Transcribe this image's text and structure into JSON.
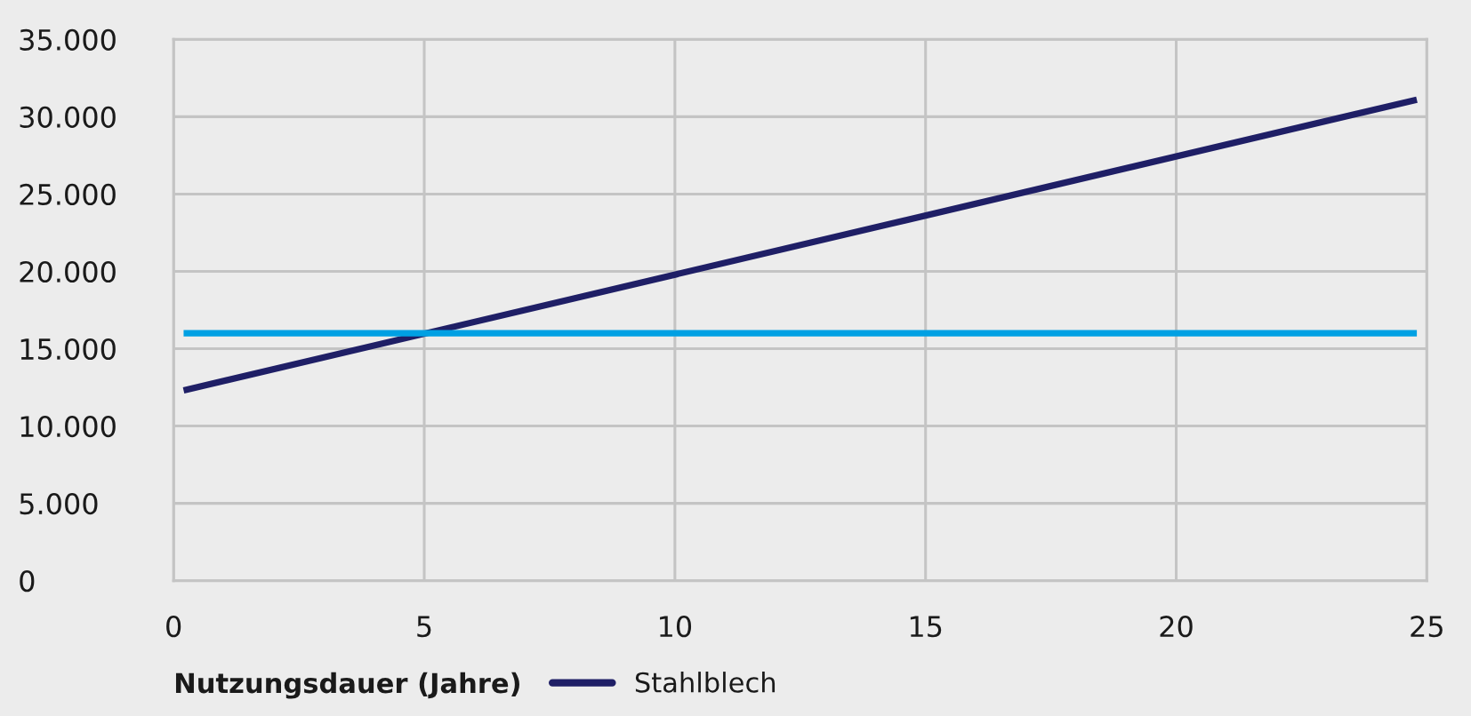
{
  "chart_data": {
    "type": "line",
    "xlabel": "Nutzungsdauer (Jahre)",
    "x": [
      0.2,
      24.8
    ],
    "series": [
      {
        "name": "Stahlblech",
        "color": "#1f1f66",
        "values": [
          12300,
          31100
        ]
      },
      {
        "color": "#00a0e3",
        "values": [
          16000,
          16000
        ]
      }
    ],
    "xlim": [
      0,
      25
    ],
    "xticks": [
      0,
      5,
      10,
      15,
      20,
      25
    ],
    "ylim": [
      0,
      35000
    ],
    "yticks": [
      0,
      {
        "value": 5000,
        "label": "5.000"
      },
      {
        "value": 10000,
        "label": "10.000"
      },
      {
        "value": 15000,
        "label": "15.000"
      },
      {
        "value": 20000,
        "label": "20.000"
      },
      {
        "value": 25000,
        "label": "25.000"
      },
      {
        "value": 30000,
        "label": "30.000"
      },
      {
        "value": 35000,
        "label": "35.000"
      }
    ],
    "grid": true,
    "legend": "bottom"
  }
}
